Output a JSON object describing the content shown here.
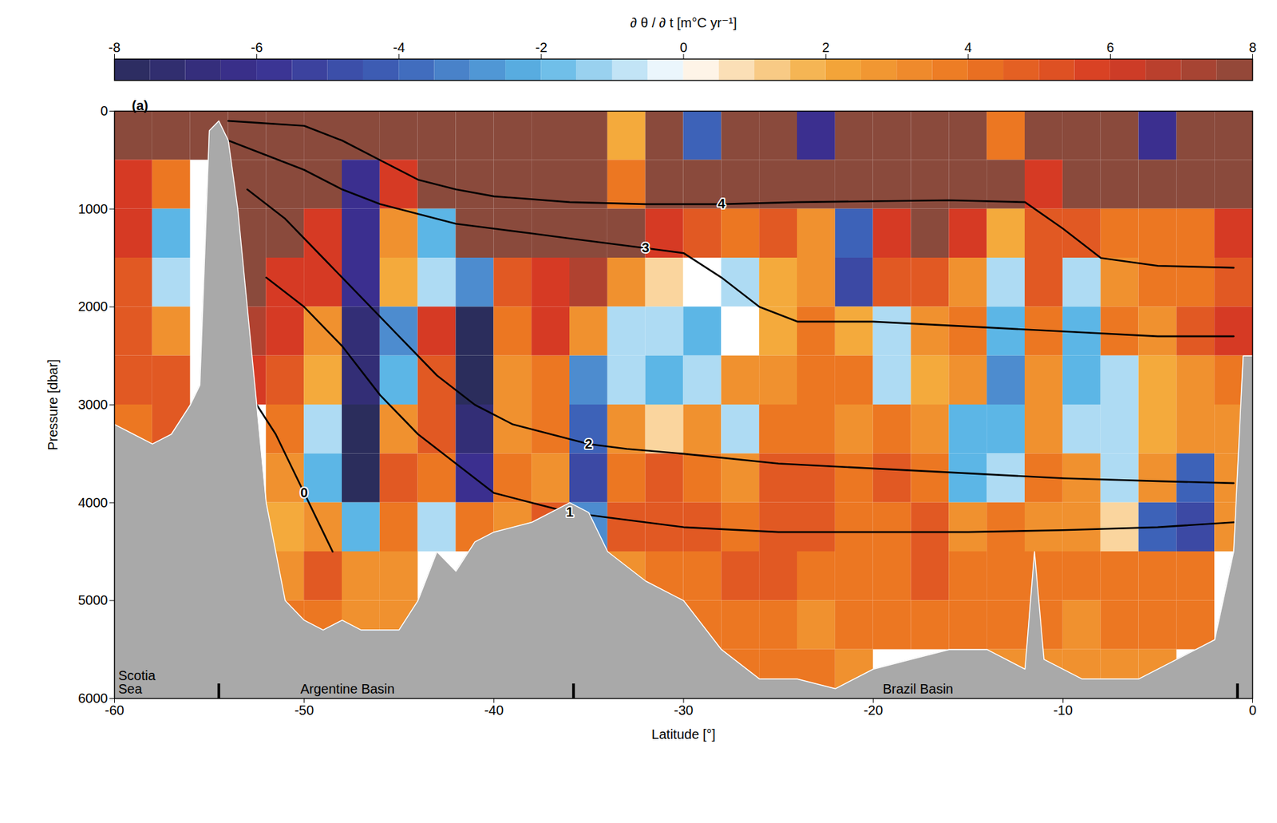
{
  "chart_data": {
    "type": "heatmap",
    "panel": "(a)",
    "x_label": "Latitude [°]",
    "y_label": "Pressure [dbar]",
    "xlim": [
      -60,
      0
    ],
    "xticks": [
      -60,
      -50,
      -40,
      -30,
      -20,
      -10,
      0
    ],
    "ylim": [
      6000,
      0
    ],
    "yticks": [
      0,
      1000,
      2000,
      3000,
      4000,
      5000,
      6000
    ],
    "colorbar": {
      "label": "∂ θ / ∂ t [m°C yr⁻¹]",
      "lim": [
        -8,
        8
      ],
      "ticks": [
        -8,
        -6,
        -4,
        -2,
        0,
        2,
        4,
        6,
        8
      ]
    },
    "cells": {
      "x_edges": [
        -60,
        -58,
        -56,
        -54,
        -52,
        -50,
        -48,
        -46,
        -44,
        -42,
        -40,
        -38,
        -36,
        -34,
        -32,
        -30,
        -28,
        -26,
        -24,
        -22,
        -20,
        -18,
        -16,
        -14,
        -12,
        -10,
        -8,
        -6,
        -4,
        -2,
        0
      ],
      "y_edges": [
        0,
        500,
        1000,
        1500,
        2000,
        2500,
        3000,
        3500,
        4000,
        4500,
        5000,
        5500,
        6000
      ],
      "values": [
        [
          8,
          8,
          8,
          8,
          8,
          8,
          8,
          8,
          8,
          8,
          8,
          8,
          8,
          2,
          8,
          -4,
          8,
          8,
          -6,
          8,
          8,
          8,
          8,
          4,
          8,
          8,
          8,
          -6,
          8,
          8
        ],
        [
          6,
          4,
          null,
          8,
          8,
          8,
          -6,
          6,
          8,
          8,
          8,
          8,
          8,
          4,
          8,
          8,
          8,
          8,
          8,
          8,
          8,
          8,
          8,
          8,
          6,
          8,
          8,
          8,
          8,
          8
        ],
        [
          6,
          -2,
          null,
          8,
          8,
          6,
          -6,
          3,
          -2,
          8,
          8,
          8,
          8,
          8,
          6,
          5,
          4,
          5,
          3,
          -4,
          6,
          8,
          6,
          2,
          5,
          5,
          4,
          4,
          4,
          6
        ],
        [
          5,
          -1,
          null,
          8,
          6,
          6,
          -6,
          2,
          -1,
          -3,
          5,
          6,
          7,
          3,
          1,
          0,
          -1,
          2,
          3,
          -5,
          5,
          5,
          3,
          -1,
          5,
          -1,
          3,
          4,
          4,
          5
        ],
        [
          5,
          3,
          null,
          7,
          6,
          3,
          -7,
          -3,
          6,
          -8,
          4,
          6,
          3,
          -1,
          -1,
          -2,
          0,
          2,
          4,
          2,
          -1,
          3,
          4,
          -2,
          4,
          -2,
          4,
          3,
          5,
          6
        ],
        [
          5,
          5,
          null,
          6,
          5,
          2,
          -7,
          -2,
          5,
          -8,
          3,
          4,
          -3,
          -1,
          -2,
          -1,
          3,
          3,
          4,
          4,
          -1,
          2,
          3,
          -3,
          3,
          -2,
          -1,
          2,
          3,
          4
        ],
        [
          4,
          5,
          null,
          null,
          4,
          -1,
          -8,
          3,
          5,
          -7,
          3,
          4,
          -4,
          3,
          1,
          3,
          -1,
          4,
          4,
          3,
          4,
          3,
          -2,
          -2,
          3,
          -1,
          -1,
          2,
          3,
          3
        ],
        [
          null,
          null,
          null,
          null,
          3,
          -2,
          -8,
          5,
          4,
          -6,
          4,
          3,
          -5,
          4,
          5,
          4,
          3,
          5,
          5,
          4,
          5,
          4,
          -2,
          -1,
          4,
          3,
          -1,
          3,
          -4,
          3
        ],
        [
          null,
          null,
          null,
          null,
          2,
          3,
          -2,
          4,
          -1,
          4,
          3,
          5,
          -3,
          5,
          5,
          5,
          4,
          5,
          5,
          4,
          4,
          5,
          3,
          4,
          3,
          3,
          1,
          -4,
          -5,
          3
        ],
        [
          null,
          null,
          null,
          null,
          3,
          5,
          3,
          3,
          null,
          null,
          null,
          null,
          null,
          3,
          4,
          4,
          5,
          5,
          4,
          4,
          4,
          5,
          4,
          4,
          4,
          4,
          4,
          4,
          4,
          null
        ],
        [
          null,
          null,
          null,
          null,
          4,
          4,
          3,
          3,
          null,
          null,
          null,
          null,
          null,
          null,
          null,
          4,
          4,
          4,
          3,
          4,
          4,
          4,
          4,
          4,
          4,
          3,
          4,
          4,
          4,
          null
        ],
        [
          null,
          null,
          null,
          null,
          null,
          null,
          null,
          null,
          null,
          null,
          null,
          null,
          null,
          null,
          null,
          null,
          4,
          4,
          4,
          3,
          null,
          null,
          null,
          3,
          3,
          3,
          3,
          3,
          null,
          null
        ]
      ]
    },
    "seafloor": {
      "x": [
        -60,
        -59,
        -58,
        -57,
        -56,
        -55.5,
        -55,
        -54.5,
        -54,
        -53.5,
        -52,
        -51,
        -50,
        -49,
        -48,
        -47,
        -45,
        -44,
        -43,
        -42,
        -41,
        -40,
        -38,
        -36,
        -35,
        -34,
        -32,
        -30,
        -28,
        -26,
        -24,
        -22,
        -20,
        -18,
        -16,
        -14,
        -12,
        -11.5,
        -11,
        -9,
        -6,
        -4,
        -2,
        -1,
        -0.5,
        0
      ],
      "y": [
        3200,
        3300,
        3400,
        3300,
        3000,
        2800,
        200,
        100,
        300,
        1000,
        4000,
        5000,
        5200,
        5300,
        5200,
        5300,
        5300,
        5000,
        4500,
        4700,
        4400,
        4300,
        4200,
        4000,
        4100,
        4500,
        4800,
        5000,
        5500,
        5800,
        5800,
        5900,
        5700,
        5600,
        5500,
        5500,
        5700,
        4500,
        5600,
        5800,
        5800,
        5600,
        5400,
        4500,
        2500,
        2500
      ]
    },
    "contours": [
      {
        "level": 0,
        "x": [
          -52.5,
          -51.5,
          -50,
          -49,
          -48.5
        ],
        "y": [
          3000,
          3300,
          3900,
          4300,
          4500
        ]
      },
      {
        "level": 1,
        "x": [
          -52,
          -50,
          -48,
          -46,
          -44,
          -42,
          -40,
          -38,
          -36,
          -34,
          -30,
          -25,
          -20,
          -15,
          -10,
          -5,
          -1
        ],
        "y": [
          1700,
          2000,
          2400,
          2900,
          3300,
          3600,
          3900,
          4000,
          4100,
          4150,
          4250,
          4300,
          4300,
          4300,
          4280,
          4250,
          4200
        ]
      },
      {
        "level": 2,
        "x": [
          -53,
          -51,
          -49,
          -47,
          -45,
          -43,
          -41,
          -39,
          -37,
          -35,
          -33,
          -30,
          -25,
          -20,
          -15,
          -10,
          -5,
          -1
        ],
        "y": [
          800,
          1100,
          1500,
          1900,
          2300,
          2700,
          3000,
          3200,
          3300,
          3400,
          3450,
          3500,
          3600,
          3650,
          3700,
          3750,
          3780,
          3800
        ]
      },
      {
        "level": 3,
        "x": [
          -54,
          -52,
          -50,
          -48,
          -46,
          -44,
          -42,
          -40,
          -38,
          -36,
          -34,
          -32,
          -30,
          -28,
          -26,
          -24,
          -22,
          -20,
          -15,
          -10,
          -5,
          -1
        ],
        "y": [
          300,
          450,
          600,
          800,
          950,
          1050,
          1150,
          1200,
          1250,
          1300,
          1350,
          1400,
          1450,
          1700,
          2000,
          2150,
          2150,
          2150,
          2200,
          2250,
          2300,
          2300
        ]
      },
      {
        "level": 4,
        "x": [
          -54,
          -50,
          -48,
          -46,
          -44,
          -42,
          -40,
          -36,
          -32,
          -28,
          -24,
          -20,
          -16,
          -12,
          -10,
          -9,
          -8,
          -5,
          -1
        ],
        "y": [
          100,
          150,
          300,
          500,
          700,
          800,
          870,
          930,
          950,
          950,
          930,
          920,
          910,
          930,
          1200,
          1350,
          1500,
          1580,
          1600
        ]
      }
    ],
    "regions": [
      {
        "label": "Scotia Sea",
        "x": -59.8
      },
      {
        "label": "Argentine Basin",
        "x": -50.2
      },
      {
        "label": "Brazil Basin",
        "x": -19.5
      }
    ],
    "boundaries": [
      -54.5,
      -35.8,
      -0.8
    ]
  }
}
